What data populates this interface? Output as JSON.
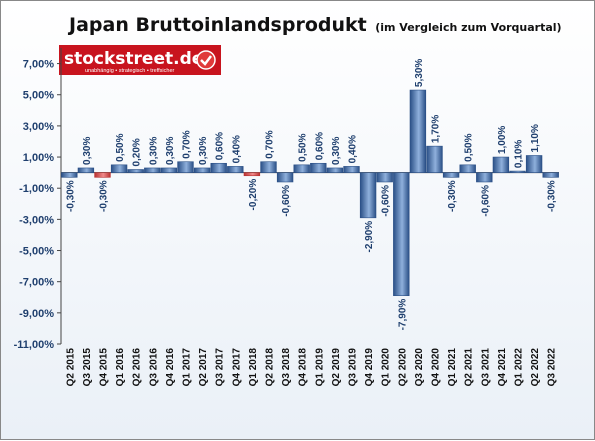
{
  "chart_data": {
    "type": "bar",
    "title": "Japan Bruttoinlandsprodukt",
    "subtitle": "(im Vergleich zum Vorquartal)",
    "categories": [
      "Q2 2015",
      "Q3 2015",
      "Q4 2015",
      "Q1 2016",
      "Q2 2016",
      "Q3 2016",
      "Q4 2016",
      "Q1 2017",
      "Q2 2017",
      "Q3 2017",
      "Q4 2017",
      "Q1 2018",
      "Q2 2018",
      "Q3 2018",
      "Q4 2018",
      "Q1 2019",
      "Q2 2019",
      "Q3 2019",
      "Q4 2019",
      "Q1 2020",
      "Q2 2020",
      "Q3 2020",
      "Q4 2020",
      "Q1 2021",
      "Q2 2021",
      "Q3 2021",
      "Q4 2021",
      "Q1 2022",
      "Q2 2022",
      "Q3 2022"
    ],
    "values": [
      -0.3,
      0.3,
      -0.3,
      0.5,
      0.2,
      0.3,
      0.3,
      0.7,
      0.3,
      0.6,
      0.4,
      -0.2,
      0.7,
      -0.6,
      0.5,
      0.6,
      0.3,
      0.4,
      -2.9,
      -0.6,
      -7.9,
      5.3,
      1.7,
      -0.3,
      0.5,
      -0.6,
      1.0,
      0.1,
      1.1,
      -0.3
    ],
    "data_labels": [
      "-0,30%",
      "0,30%",
      "-0,30%",
      "0,50%",
      "0,20%",
      "0,30%",
      "0,30%",
      "0,70%",
      "0,30%",
      "0,60%",
      "0,40%",
      "-0,20%",
      "0,70%",
      "-0,60%",
      "0,50%",
      "0,60%",
      "0,30%",
      "0,40%",
      "-2,90%",
      "-0,60%",
      "-7,90%",
      "5,30%",
      "1,70%",
      "-0,30%",
      "0,50%",
      "-0,60%",
      "1,00%",
      "0,10%",
      "1,10%",
      "-0,30%"
    ],
    "ylim": [
      -11,
      8
    ],
    "yticks": [
      7,
      5,
      3,
      1,
      -1,
      -3,
      -5,
      -7,
      -9,
      -11
    ],
    "ytick_labels": [
      "7,00%",
      "5,00%",
      "3,00%",
      "1,00%",
      "-1,00%",
      "-3,00%",
      "-5,00%",
      "-7,00%",
      "-9,00%",
      "-11,00%"
    ],
    "highlight_indices": [
      2,
      11
    ],
    "colors": {
      "bar_dark": "#2a4f86",
      "bar_light": "#8fb0dc",
      "highlight_dark": "#b83030",
      "highlight_light": "#f08a8a",
      "label": "#1f3f6e",
      "axis": "#444444"
    }
  },
  "logo": {
    "brand": "stockstreet.de",
    "tagline": "unabhängig • strategisch • treffsicher",
    "colors": {
      "bg": "#c8141e",
      "check": "#ffffff"
    }
  }
}
